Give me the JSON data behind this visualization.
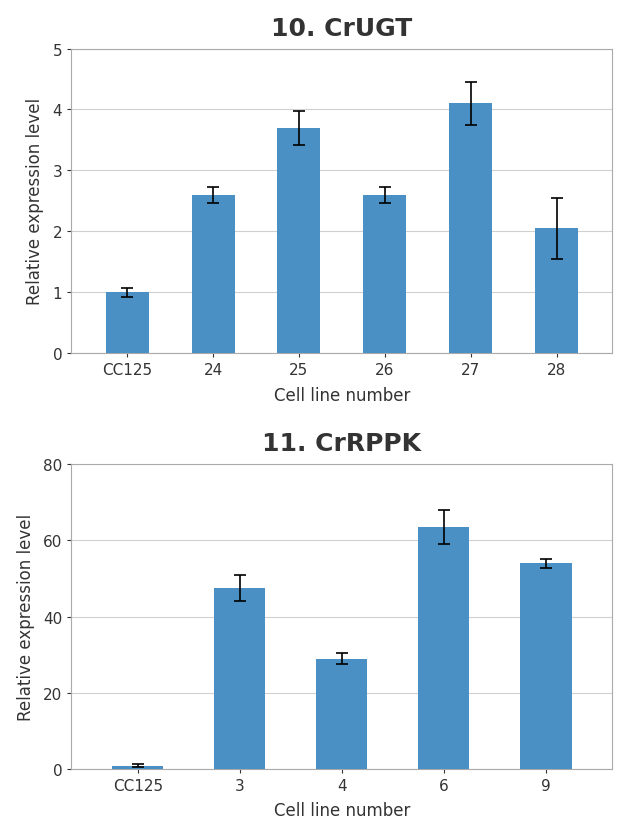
{
  "chart1": {
    "title": "10. CrUGT",
    "categories": [
      "CC125",
      "24",
      "25",
      "26",
      "27",
      "28"
    ],
    "values": [
      1.0,
      2.6,
      3.7,
      2.6,
      4.1,
      2.05
    ],
    "errors": [
      0.07,
      0.13,
      0.28,
      0.13,
      0.35,
      0.5
    ],
    "ylabel": "Relative expression level",
    "xlabel": "Cell line number",
    "ylim": [
      0,
      5
    ],
    "yticks": [
      0,
      1,
      2,
      3,
      4,
      5
    ],
    "bar_color": "#4a90c4"
  },
  "chart2": {
    "title": "11. CrRPPK",
    "categories": [
      "CC125",
      "3",
      "4",
      "6",
      "9"
    ],
    "values": [
      0.8,
      47.5,
      29.0,
      63.5,
      54.0
    ],
    "errors": [
      0.4,
      3.5,
      1.5,
      4.5,
      1.2
    ],
    "ylabel": "Relative expression level",
    "xlabel": "Cell line number",
    "ylim": [
      0,
      80
    ],
    "yticks": [
      0,
      20,
      40,
      60,
      80
    ],
    "bar_color": "#4a90c4"
  },
  "title_fontsize": 18,
  "label_fontsize": 12,
  "tick_fontsize": 11,
  "bar_width": 0.5,
  "background_color": "#ffffff",
  "border_color": "#aaaaaa",
  "grid_color": "#d0d0d0",
  "text_color": "#333333",
  "title_color": "#333333"
}
